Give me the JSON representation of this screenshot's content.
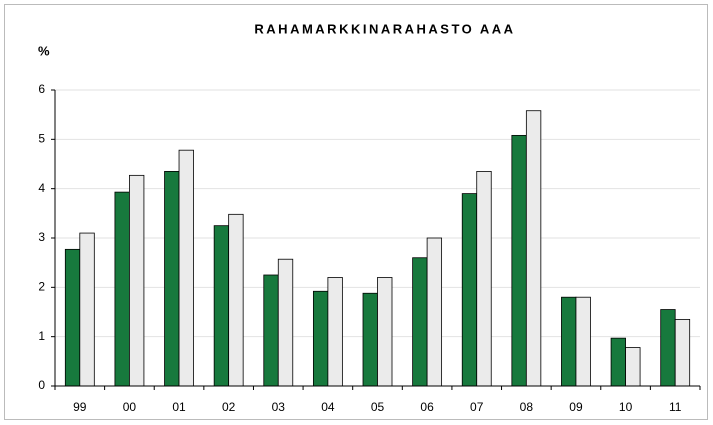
{
  "chart_data": {
    "type": "bar",
    "title": "RAHAMARKKINARAHASTO AAA",
    "y_label": "%",
    "categories": [
      "99",
      "00",
      "01",
      "02",
      "03",
      "04",
      "05",
      "06",
      "07",
      "08",
      "09",
      "10",
      "11"
    ],
    "series": [
      {
        "color": "#17793d",
        "values": [
          2.77,
          3.93,
          4.35,
          3.25,
          2.25,
          1.92,
          1.88,
          2.6,
          3.9,
          5.08,
          1.8,
          0.97,
          1.55
        ]
      },
      {
        "color": "#ebebeb",
        "values": [
          3.1,
          4.27,
          4.78,
          3.48,
          2.57,
          2.2,
          2.2,
          3.0,
          4.35,
          5.58,
          1.8,
          0.78,
          1.35
        ]
      }
    ],
    "ylim": [
      0,
      6
    ],
    "yticks": [
      0,
      1,
      2,
      3,
      4,
      5,
      6
    ],
    "grid": true
  }
}
